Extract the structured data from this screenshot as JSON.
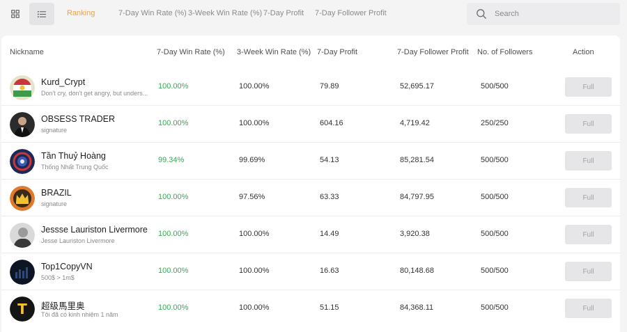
{
  "tabs": [
    {
      "label": "Ranking",
      "active": true
    },
    {
      "label": "7-Day Win Rate (%)",
      "active": false
    },
    {
      "label": "3-Week Win Rate (%)",
      "active": false
    },
    {
      "label": "7-Day Profit",
      "active": false
    },
    {
      "label": "7-Day Follower Profit",
      "active": false
    }
  ],
  "search": {
    "placeholder": "Search"
  },
  "columns": {
    "nickname": "Nickname",
    "win7": "7-Day Win Rate (%)",
    "win3w": "3-Week Win Rate (%)",
    "profit7": "7-Day Profit",
    "follower_profit7": "7-Day Follower Profit",
    "followers": "No. of Followers",
    "action": "Action"
  },
  "rows": [
    {
      "nickname": "Kurd_Crypt",
      "signature": "Don't cry, don't get angry, but unders...",
      "win7": "100.00%",
      "win3w": "100.00%",
      "profit7": "79.89",
      "follower_profit7": "52,695.17",
      "followers": "500/500",
      "action": "Full"
    },
    {
      "nickname": "OBSESS TRADER",
      "signature": "signature",
      "win7": "100.00%",
      "win3w": "100.00%",
      "profit7": "604.16",
      "follower_profit7": "4,719.42",
      "followers": "250/250",
      "action": "Full"
    },
    {
      "nickname": "Tần Thuỷ Hoàng",
      "signature": "Thống Nhất Trung Quốc",
      "win7": "99.34%",
      "win3w": "99.69%",
      "profit7": "54.13",
      "follower_profit7": "85,281.54",
      "followers": "500/500",
      "action": "Full"
    },
    {
      "nickname": "BRAZIL",
      "signature": "signature",
      "win7": "100.00%",
      "win3w": "97.56%",
      "profit7": "63.33",
      "follower_profit7": "84,797.95",
      "followers": "500/500",
      "action": "Full"
    },
    {
      "nickname": "Jessse Lauriston Livermore",
      "signature": "Jesse Lauriston Livermore",
      "win7": "100.00%",
      "win3w": "100.00%",
      "profit7": "14.49",
      "follower_profit7": "3,920.38",
      "followers": "500/500",
      "action": "Full"
    },
    {
      "nickname": "Top1CopyVN",
      "signature": "500$ > 1m$",
      "win7": "100.00%",
      "win3w": "100.00%",
      "profit7": "16.63",
      "follower_profit7": "80,148.68",
      "followers": "500/500",
      "action": "Full"
    },
    {
      "nickname": "超级馬里奥",
      "signature": "Tôi đã có kinh nhiệm 1 năm",
      "win7": "100.00%",
      "win3w": "100.00%",
      "profit7": "51.15",
      "follower_profit7": "84,368.11",
      "followers": "500/500",
      "action": "Full"
    }
  ],
  "avatars": [
    {
      "name": "flag-globe-avatar",
      "bg": "#e8e2c8"
    },
    {
      "name": "suit-man-avatar",
      "bg": "#2b2b2b"
    },
    {
      "name": "shield-emblem-avatar",
      "bg": "#1e2a55"
    },
    {
      "name": "crown-avatar",
      "bg": "#e07a2a"
    },
    {
      "name": "portrait-avatar",
      "bg": "#d9d9d9"
    },
    {
      "name": "dark-chart-avatar",
      "bg": "#0e1626"
    },
    {
      "name": "letter-t-avatar",
      "bg": "#151515",
      "letter": "T"
    }
  ],
  "colors": {
    "accent": "#f0a23b",
    "win": "#3aa856"
  }
}
